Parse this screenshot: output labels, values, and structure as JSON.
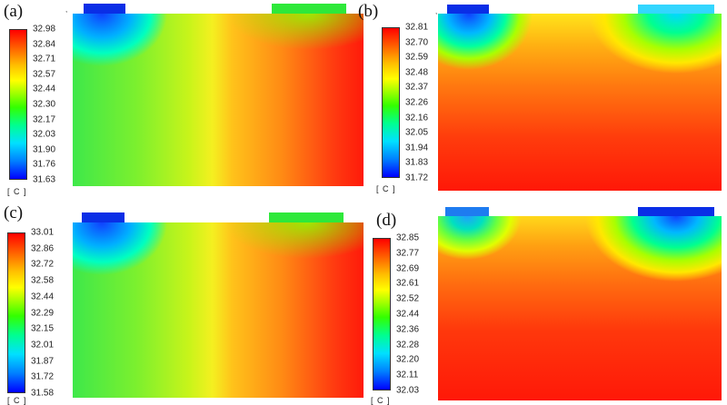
{
  "panels": [
    {
      "label": "(a)",
      "unit": "[ C ]",
      "ticks": [
        "32.98",
        "32.84",
        "32.71",
        "32.57",
        "32.44",
        "32.30",
        "32.17",
        "32.03",
        "31.90",
        "31.76",
        "31.63"
      ],
      "tab_left_color": "#0a2ee6",
      "tab_right_color": "#2ee83a"
    },
    {
      "label": "(b)",
      "unit": "[ C ]",
      "ticks": [
        "32.81",
        "32.70",
        "32.59",
        "32.48",
        "32.37",
        "32.26",
        "32.16",
        "32.05",
        "31.94",
        "31.83",
        "31.72"
      ],
      "tab_left_color": "#0a2ee6",
      "tab_right_color": "#33d6ff"
    },
    {
      "label": "(c)",
      "unit": "[ C ]",
      "ticks": [
        "33.01",
        "32.86",
        "32.72",
        "32.58",
        "32.44",
        "32.29",
        "32.15",
        "32.01",
        "31.87",
        "31.72",
        "31.58"
      ],
      "tab_left_color": "#0a2ee6",
      "tab_right_color": "#2ee83a"
    },
    {
      "label": "(d)",
      "unit": "[ C ]",
      "ticks": [
        "32.85",
        "32.77",
        "32.69",
        "32.61",
        "32.52",
        "32.44",
        "32.36",
        "32.28",
        "32.20",
        "32.11",
        "32.03"
      ],
      "tab_left_color": "#1e7cf0",
      "tab_right_color": "#0a2ee6"
    }
  ]
}
